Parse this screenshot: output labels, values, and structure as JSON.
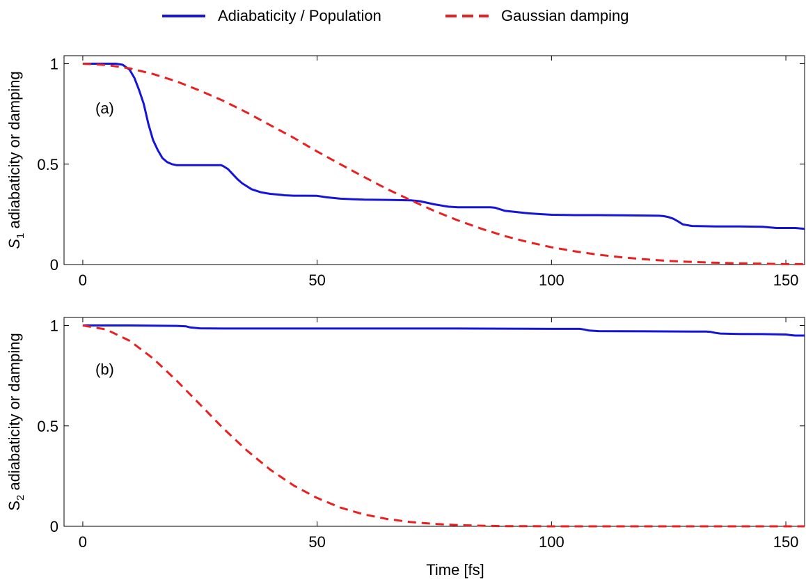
{
  "legend": {
    "items": [
      {
        "label": "Adiabaticity / Population",
        "color": "#1414dc",
        "style": "solid"
      },
      {
        "label": "Gaussian damping",
        "color": "#e82020",
        "style": "dashed"
      }
    ],
    "placement": "top-center"
  },
  "chart_data": [
    {
      "type": "line",
      "panel_label": "(a)",
      "xlabel": "",
      "ylabel": "S1 adiabaticity or damping",
      "ylabel_parts": {
        "symbol": "S",
        "subscript": "1",
        "rest": " adiabaticity or damping",
        "italic": true
      },
      "xlim": [
        -4,
        154
      ],
      "ylim": [
        0,
        1.04
      ],
      "xticks": [
        0,
        50,
        100,
        150
      ],
      "xtick_labels": [
        "0",
        "50",
        "100",
        "150"
      ],
      "yticks": [
        0,
        0.5,
        1
      ],
      "ytick_labels": [
        "0",
        "0.5",
        "1"
      ],
      "grid": false,
      "series": [
        {
          "name": "Adiabaticity / Population",
          "color": "#1414dc",
          "style": "solid",
          "x": [
            0,
            4,
            7,
            8.5,
            10,
            11,
            12,
            13,
            14,
            15,
            16,
            17,
            18,
            19,
            20,
            22,
            24,
            26,
            28,
            29.5,
            30,
            31,
            32,
            33,
            34,
            35,
            36,
            38,
            40,
            42,
            43,
            45,
            47,
            50,
            52,
            55,
            58,
            60,
            65,
            70,
            72,
            75,
            78,
            80,
            85,
            87,
            88,
            90,
            95,
            100,
            105,
            110,
            115,
            120,
            123,
            124,
            125,
            126,
            127,
            128,
            130,
            135,
            140,
            145,
            148,
            150,
            152,
            154
          ],
          "y": [
            1.0,
            1.0,
            1.0,
            0.995,
            0.97,
            0.93,
            0.87,
            0.8,
            0.7,
            0.62,
            0.57,
            0.53,
            0.51,
            0.5,
            0.495,
            0.495,
            0.495,
            0.495,
            0.495,
            0.495,
            0.49,
            0.475,
            0.45,
            0.425,
            0.405,
            0.39,
            0.375,
            0.36,
            0.352,
            0.348,
            0.345,
            0.343,
            0.343,
            0.342,
            0.335,
            0.328,
            0.325,
            0.323,
            0.322,
            0.32,
            0.315,
            0.3,
            0.288,
            0.285,
            0.285,
            0.285,
            0.283,
            0.268,
            0.255,
            0.248,
            0.246,
            0.246,
            0.245,
            0.244,
            0.243,
            0.241,
            0.236,
            0.228,
            0.215,
            0.2,
            0.192,
            0.19,
            0.19,
            0.188,
            0.182,
            0.182,
            0.182,
            0.178
          ]
        },
        {
          "name": "Gaussian damping",
          "color": "#e82020",
          "style": "dashed",
          "x": [
            0,
            5,
            10,
            15,
            20,
            25,
            30,
            35,
            40,
            45,
            50,
            55,
            60,
            65,
            70,
            75,
            80,
            85,
            90,
            95,
            100,
            105,
            110,
            115,
            120,
            125,
            130,
            135,
            140,
            145,
            150,
            154
          ],
          "y": [
            1.0,
            0.994,
            0.977,
            0.949,
            0.912,
            0.866,
            0.815,
            0.757,
            0.694,
            0.631,
            0.563,
            0.499,
            0.436,
            0.375,
            0.32,
            0.267,
            0.22,
            0.179,
            0.142,
            0.112,
            0.086,
            0.066,
            0.049,
            0.036,
            0.026,
            0.018,
            0.013,
            0.009,
            0.006,
            0.004,
            0.002,
            0.002
          ]
        }
      ]
    },
    {
      "type": "line",
      "panel_label": "(b)",
      "xlabel": "Time [fs]",
      "ylabel": "S2 adiabaticity or damping",
      "ylabel_parts": {
        "symbol": "S",
        "subscript": "2",
        "rest": " adiabaticity or damping",
        "italic": false
      },
      "xlim": [
        -4,
        154
      ],
      "ylim": [
        0,
        1.04
      ],
      "xticks": [
        0,
        50,
        100,
        150
      ],
      "xtick_labels": [
        "0",
        "50",
        "100",
        "150"
      ],
      "yticks": [
        0,
        0.5,
        1
      ],
      "ytick_labels": [
        "0",
        "0.5",
        "1"
      ],
      "grid": false,
      "series": [
        {
          "name": "Adiabaticity / Population",
          "color": "#1414dc",
          "style": "solid",
          "x": [
            0,
            10,
            20,
            22,
            23,
            25,
            30,
            50,
            80,
            100,
            106,
            107,
            108,
            110,
            120,
            130,
            133,
            134,
            135,
            136,
            140,
            145,
            150,
            151,
            152,
            154
          ],
          "y": [
            1.0,
            1.0,
            0.998,
            0.996,
            0.99,
            0.986,
            0.985,
            0.985,
            0.985,
            0.983,
            0.983,
            0.98,
            0.975,
            0.972,
            0.971,
            0.97,
            0.97,
            0.968,
            0.963,
            0.96,
            0.958,
            0.957,
            0.955,
            0.952,
            0.95,
            0.95
          ]
        },
        {
          "name": "Gaussian damping",
          "color": "#e82020",
          "style": "dashed",
          "x": [
            0,
            5,
            10,
            15,
            20,
            25,
            30,
            35,
            40,
            45,
            50,
            55,
            60,
            65,
            70,
            75,
            80,
            85,
            90,
            95,
            100,
            110,
            120,
            130,
            140,
            150,
            154
          ],
          "y": [
            1.0,
            0.98,
            0.924,
            0.836,
            0.726,
            0.607,
            0.487,
            0.378,
            0.282,
            0.203,
            0.141,
            0.093,
            0.059,
            0.036,
            0.021,
            0.012,
            0.006,
            0.003,
            0.001,
            0.001,
            0.0,
            0.0,
            0.0,
            0.0,
            0.0,
            0.0,
            0.0
          ]
        }
      ]
    }
  ]
}
